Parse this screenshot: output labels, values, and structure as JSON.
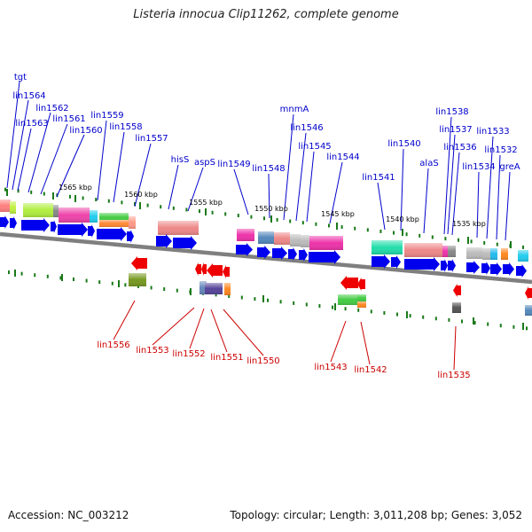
{
  "title": "Listeria innocua Clip11262, complete genome",
  "footer": {
    "accession": "Accession: NC_003212",
    "summary": "Topology: circular; Length: 3,011,208 bp; Genes: 3,052"
  },
  "colors": {
    "forward_label": "#0000cc",
    "reverse_label": "#cc0000",
    "backbone": "#7f7f7f",
    "tick": "#1a7a1a",
    "cds_arrow": "#0000ee",
    "reverse_arrow": "#ee0000"
  },
  "kbp_ticks": [
    "1565 kbp",
    "1560 kbp",
    "1555 kbp",
    "1550 kbp",
    "1545 kbp",
    "1540 kbp",
    "1535 kbp"
  ],
  "forward_labels": [
    "tgt",
    "lin1564",
    "lin1563",
    "lin1562",
    "lin1561",
    "lin1560",
    "lin1559",
    "lin1558",
    "lin1557",
    "hisS",
    "aspS",
    "lin1549",
    "lin1548",
    "mnmA",
    "lin1546",
    "lin1545",
    "lin1544",
    "lin1541",
    "lin1540",
    "alaS",
    "lin1538",
    "lin1537",
    "lin1536",
    "lin1534",
    "lin1533",
    "lin1532",
    "greA"
  ],
  "reverse_labels": [
    "lin1556",
    "lin1553",
    "lin1552",
    "lin1551",
    "lin1550",
    "lin1543",
    "lin1542",
    "lin1535"
  ]
}
